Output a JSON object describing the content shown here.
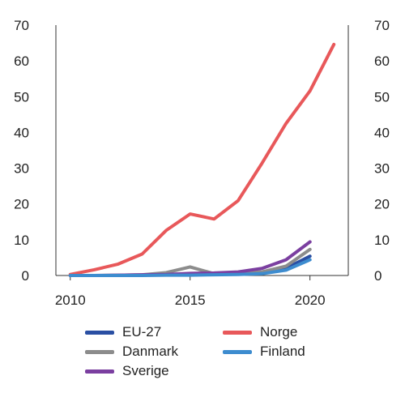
{
  "chart_data": {
    "type": "line",
    "title": "",
    "xlabel": "",
    "ylabel": "",
    "x": [
      2010,
      2011,
      2012,
      2013,
      2014,
      2015,
      2016,
      2017,
      2018,
      2019,
      2020,
      2021
    ],
    "xlim": [
      2009.4,
      2021.6
    ],
    "ylim": [
      0,
      70
    ],
    "x_ticks": [
      "2010",
      "2015",
      "2020"
    ],
    "y_ticks": [
      "0",
      "10",
      "20",
      "30",
      "40",
      "50",
      "60",
      "70"
    ],
    "dual_y_axis": true,
    "grid": false,
    "legend_position": "bottom",
    "series": [
      {
        "name": "EU-27",
        "color": "#2a4fa3",
        "values": [
          0,
          0,
          0,
          0.1,
          0.2,
          0.3,
          0.4,
          0.6,
          1.0,
          2.0,
          5.4,
          null
        ]
      },
      {
        "name": "Danmark",
        "color": "#8c8c8c",
        "values": [
          0,
          0,
          0.1,
          0.2,
          0.8,
          2.4,
          0.5,
          0.7,
          1.0,
          2.6,
          7.3,
          null
        ]
      },
      {
        "name": "Sverige",
        "color": "#7b3fa0",
        "values": [
          0,
          0,
          0.1,
          0.2,
          0.3,
          0.6,
          0.7,
          1.0,
          2.0,
          4.4,
          9.4,
          null
        ]
      },
      {
        "name": "Norge",
        "color": "#e8585a",
        "values": [
          0.3,
          1.6,
          3.2,
          6.0,
          12.6,
          17.2,
          15.8,
          20.9,
          31.4,
          42.5,
          51.6,
          64.6
        ]
      },
      {
        "name": "Finland",
        "color": "#3d8ccf",
        "values": [
          0,
          0,
          0,
          0,
          0.1,
          0.1,
          0.2,
          0.3,
          0.5,
          1.5,
          4.4,
          null
        ]
      }
    ],
    "legend_order": [
      "EU-27",
      "Norge",
      "Danmark",
      "Finland",
      "Sverige"
    ]
  }
}
